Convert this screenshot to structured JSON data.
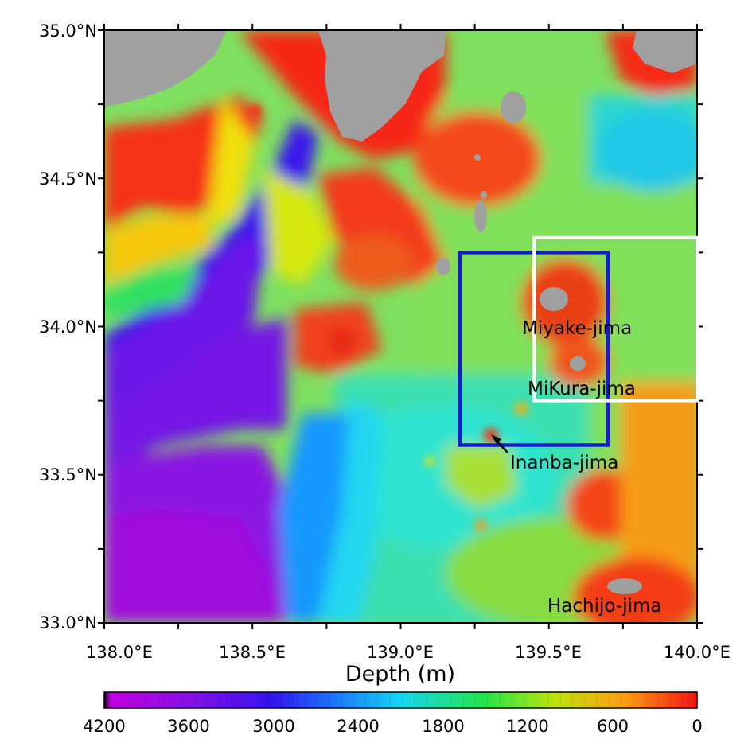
{
  "map": {
    "lon_range": [
      138.0,
      140.0
    ],
    "lat_range": [
      33.0,
      35.0
    ],
    "x_tick_labels": [
      "138.0°E",
      "138.5°E",
      "139.0°E",
      "139.5°E",
      "140.0°E"
    ],
    "y_tick_labels": [
      "35.0°N",
      "34.5°N",
      "34.0°N",
      "33.5°N",
      "33.0°N"
    ],
    "land_color": "#a0a0a0",
    "labels": {
      "miyake": "Miyake-jima",
      "mikura": "MiKura-jima",
      "inanba": "Inanba-jima",
      "hachijo": "Hachijo-jima"
    },
    "blue_box": {
      "lon": [
        139.2,
        139.7
      ],
      "lat": [
        33.6,
        34.25
      ],
      "color": "#1a1ad2"
    },
    "white_box": {
      "lon": [
        139.45,
        140.0
      ],
      "lat": [
        33.75,
        34.3
      ],
      "color": "#ffffff"
    }
  },
  "colorbar": {
    "title": "Depth (m)",
    "tick_labels": [
      "4200",
      "3600",
      "3000",
      "2400",
      "1800",
      "1200",
      "600",
      "0"
    ],
    "range": [
      4200,
      0
    ]
  }
}
